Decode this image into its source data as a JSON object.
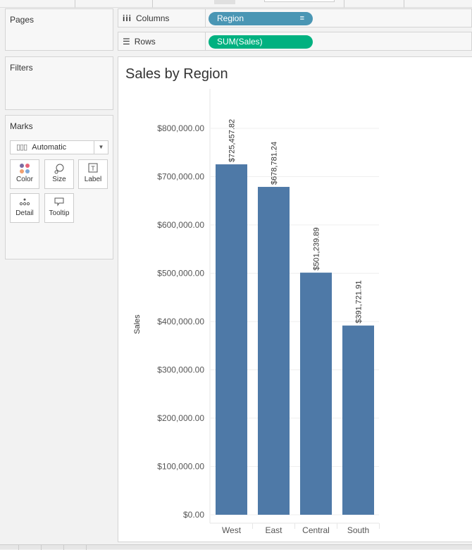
{
  "shelves": {
    "pages_title": "Pages",
    "filters_title": "Filters",
    "marks_title": "Marks",
    "columns_label": "Columns",
    "rows_label": "Rows",
    "columns_pill": "Region",
    "rows_pill": "SUM(Sales)",
    "columns_pill_color": "#4a96b4",
    "rows_pill_color": "#00b180"
  },
  "marks": {
    "type": "Automatic",
    "buttons": [
      {
        "label": "Color",
        "icon": "color-dots-icon"
      },
      {
        "label": "Size",
        "icon": "size-icon"
      },
      {
        "label": "Label",
        "icon": "label-icon"
      },
      {
        "label": "Detail",
        "icon": "detail-icon"
      },
      {
        "label": "Tooltip",
        "icon": "tooltip-icon"
      }
    ]
  },
  "chart_data": {
    "type": "bar",
    "title": "Sales by Region",
    "xlabel": "",
    "ylabel": "Sales",
    "categories": [
      "West",
      "East",
      "Central",
      "South"
    ],
    "values": [
      725457.82,
      678781.24,
      501239.89,
      391721.91
    ],
    "data_labels": [
      "$725,457.82",
      "$678,781.24",
      "$501,239.89",
      "$391,721.91"
    ],
    "ylim": [
      0,
      800000
    ],
    "yticks": [
      0,
      100000,
      200000,
      300000,
      400000,
      500000,
      600000,
      700000,
      800000
    ],
    "ytick_labels": [
      "$0.00",
      "$100,000.00",
      "$200,000.00",
      "$300,000.00",
      "$400,000.00",
      "$500,000.00",
      "$600,000.00",
      "$700,000.00",
      "$800,000.00"
    ],
    "bar_color": "#4e79a7",
    "grid": true
  }
}
